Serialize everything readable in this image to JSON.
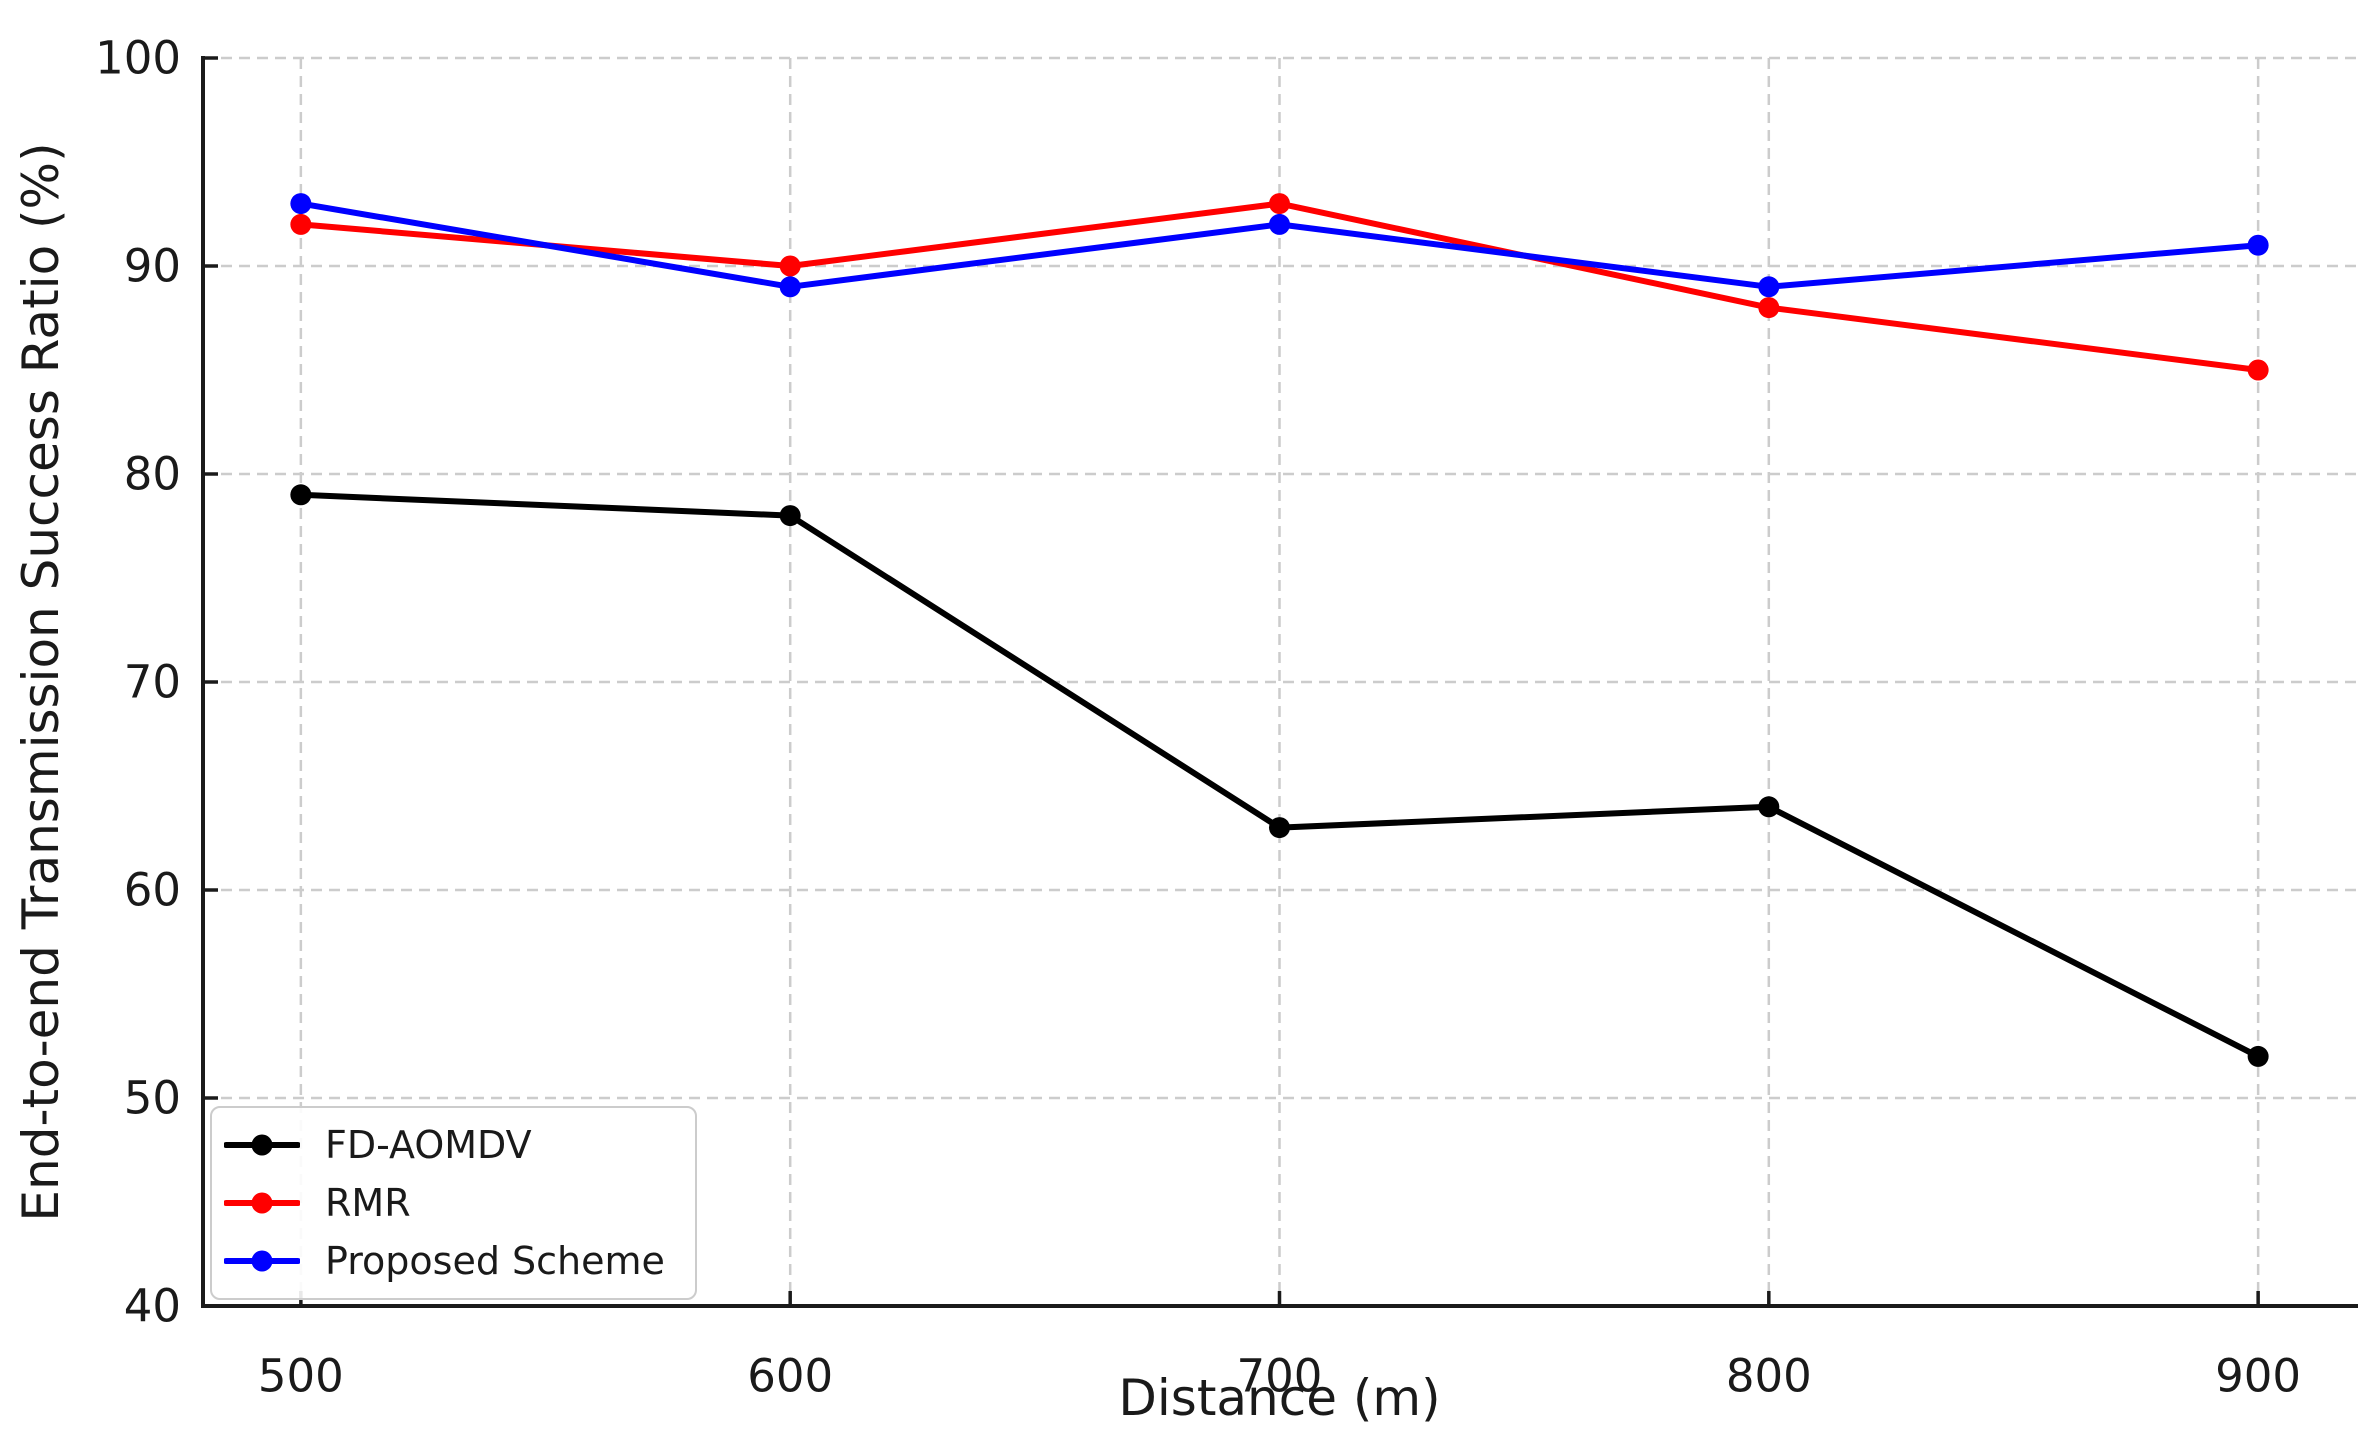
{
  "figure": {
    "background": "#ffffff",
    "grid_color": "#cccccc",
    "axis_color": "#1a1a1a",
    "text_color": "#1a1a1a",
    "legend_border_color": "#cccccc",
    "tick_label_font_px": 45,
    "axis_label_font_px": 50
  },
  "chart_data": {
    "type": "line",
    "title": "",
    "xlabel": "Distance (m)",
    "ylabel": "End-to-end Transmission Success Ratio (%)",
    "x": [
      500,
      600,
      700,
      800,
      900
    ],
    "xticks": [
      "500",
      "600",
      "700",
      "800",
      "900"
    ],
    "yticks": [
      "40",
      "50",
      "60",
      "70",
      "80",
      "90",
      "100"
    ],
    "xlim": [
      480,
      920
    ],
    "ylim": [
      40,
      100
    ],
    "grid": "dashed",
    "legend_position": "lower-left",
    "series": [
      {
        "name": "FD-AOMDV",
        "color": "#000000",
        "marker": "circle",
        "values": [
          79,
          78,
          63,
          64,
          52
        ]
      },
      {
        "name": "RMR",
        "color": "#ff0000",
        "marker": "circle",
        "values": [
          92,
          90,
          93,
          88,
          85
        ]
      },
      {
        "name": "Proposed Scheme",
        "color": "#0000ff",
        "marker": "circle",
        "values": [
          93,
          89,
          92,
          89,
          91
        ]
      }
    ]
  }
}
